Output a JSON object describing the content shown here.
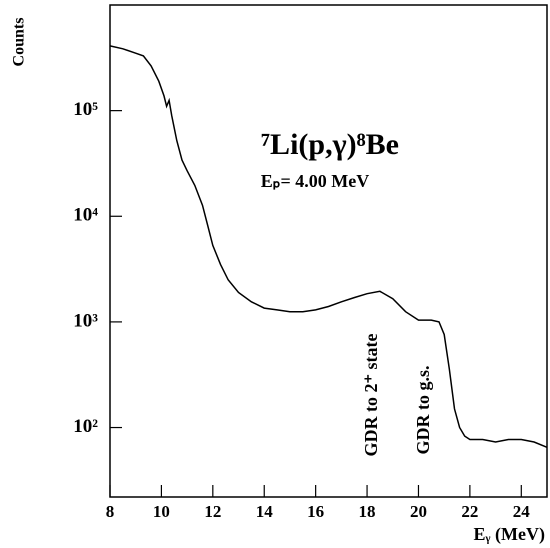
{
  "chart_data": {
    "type": "line",
    "title": "⁷Li(p,γ)⁸Be",
    "subtitle": "Eₚ= 4.00 MeV",
    "x_label": "Eᵧ (MeV)",
    "y_label": "Counts",
    "annotations": [
      "GDR to 2⁺ state",
      "GDR to g.s."
    ],
    "log_y": true,
    "color": "#000000",
    "x": [
      8.0,
      8.5,
      9.0,
      9.3,
      9.6,
      9.9,
      10.1,
      10.2,
      10.3,
      10.4,
      10.6,
      10.8,
      11.0,
      11.3,
      11.6,
      11.8,
      12.0,
      12.3,
      12.6,
      13.0,
      13.5,
      14.0,
      14.5,
      15.0,
      15.5,
      16.0,
      16.5,
      17.0,
      17.5,
      18.0,
      18.5,
      19.0,
      19.5,
      20.0,
      20.5,
      20.8,
      21.0,
      21.2,
      21.4,
      21.6,
      21.8,
      22.0,
      22.5,
      23.0,
      23.5,
      24.0,
      24.5,
      25.0
    ],
    "values": [
      410000,
      385000,
      350000,
      330000,
      265000,
      190000,
      138000,
      110000,
      125000,
      90000,
      52000,
      34000,
      27000,
      19600,
      12700,
      8200,
      5300,
      3500,
      2500,
      1900,
      1550,
      1350,
      1300,
      1250,
      1250,
      1300,
      1400,
      1550,
      1700,
      1850,
      1950,
      1660,
      1250,
      1040,
      1040,
      1000,
      760,
      360,
      150,
      100,
      83,
      77,
      77,
      73,
      77,
      77,
      73,
      65
    ],
    "xlim": [
      8,
      25
    ],
    "xticks": [
      8,
      10,
      12,
      14,
      16,
      18,
      20,
      22,
      24
    ],
    "ylim": [
      22,
      1000000
    ],
    "yticks": [
      {
        "value": 100,
        "label": "10²"
      },
      {
        "value": 1000,
        "label": "10³"
      },
      {
        "value": 10000,
        "label": "10⁴"
      },
      {
        "value": 100000,
        "label": "10⁵"
      }
    ]
  }
}
